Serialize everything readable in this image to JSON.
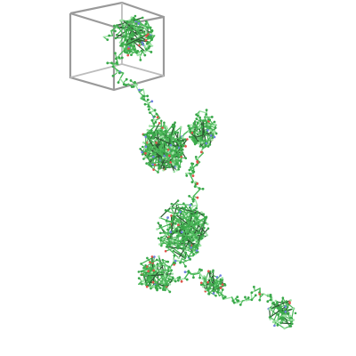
{
  "scene": {
    "background_color": "#ffffff",
    "bounding_box_color": "#9a9a9a",
    "bounding_box_highlight": "#cfcfcf",
    "bond_color": "#4cb85a",
    "bond_light_color": "#9fe3a6",
    "carbon_color": "#3aa84a",
    "oxygen_color": "#e0534a",
    "nitrogen_color": "#6f7fe0",
    "shadow_color": "#2e5a34"
  }
}
